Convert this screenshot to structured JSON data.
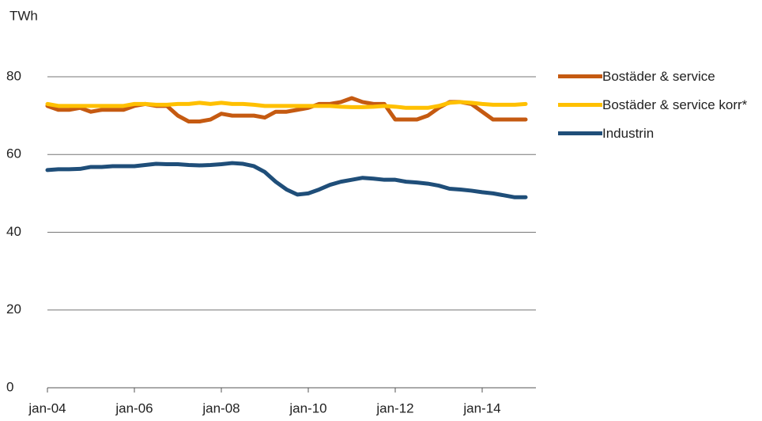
{
  "chart_data": {
    "type": "line",
    "y_axis_label": "TWh",
    "categories": [
      "jan-04",
      null,
      null,
      null,
      null,
      null,
      null,
      null,
      "jan-06",
      null,
      null,
      null,
      null,
      null,
      null,
      null,
      "jan-08",
      null,
      null,
      null,
      null,
      null,
      null,
      null,
      "jan-10",
      null,
      null,
      null,
      null,
      null,
      null,
      null,
      "jan-12",
      null,
      null,
      null,
      null,
      null,
      null,
      null,
      "jan-14",
      null,
      null,
      null,
      null
    ],
    "series": [
      {
        "name": "Bostäder & service",
        "color": "#c55a11",
        "values": [
          72.5,
          71.5,
          71.5,
          72,
          71,
          71.5,
          71.5,
          71.5,
          72.5,
          73,
          72.5,
          72.5,
          70,
          68.5,
          68.5,
          69,
          70.5,
          70,
          70,
          70,
          69.5,
          71,
          71,
          71.5,
          72,
          73,
          73,
          73.5,
          74.5,
          73.5,
          73,
          73,
          69,
          69,
          69,
          70,
          72,
          73.5,
          73.5,
          73,
          71,
          69,
          69,
          69,
          69
        ]
      },
      {
        "name": "Bostäder & service korr*",
        "color": "#ffc000",
        "values": [
          73,
          72.5,
          72.5,
          72.5,
          72.5,
          72.5,
          72.5,
          72.5,
          73,
          73,
          72.8,
          72.8,
          73,
          73,
          73.3,
          73,
          73.3,
          73,
          73,
          72.8,
          72.5,
          72.5,
          72.5,
          72.5,
          72.5,
          72.5,
          72.5,
          72.3,
          72.2,
          72.2,
          72.3,
          72.5,
          72.3,
          72,
          72,
          72,
          72.5,
          73.3,
          73.5,
          73.3,
          73,
          72.8,
          72.8,
          72.8,
          73
        ]
      },
      {
        "name": "Industrin",
        "color": "#1f4e79",
        "values": [
          56,
          56.2,
          56.2,
          56.3,
          56.8,
          56.8,
          57,
          57,
          57,
          57.3,
          57.6,
          57.5,
          57.5,
          57.3,
          57.2,
          57.3,
          57.5,
          57.8,
          57.6,
          57,
          55.5,
          53,
          51,
          49.7,
          50,
          51,
          52.2,
          53,
          53.5,
          54,
          53.8,
          53.5,
          53.5,
          53,
          52.8,
          52.5,
          52,
          51.2,
          51,
          50.7,
          50.3,
          50,
          49.5,
          49,
          49
        ]
      }
    ],
    "ylim": [
      0,
      80
    ],
    "yticks": [
      0,
      20,
      40,
      60,
      80
    ],
    "grid": true,
    "legend": "right"
  }
}
